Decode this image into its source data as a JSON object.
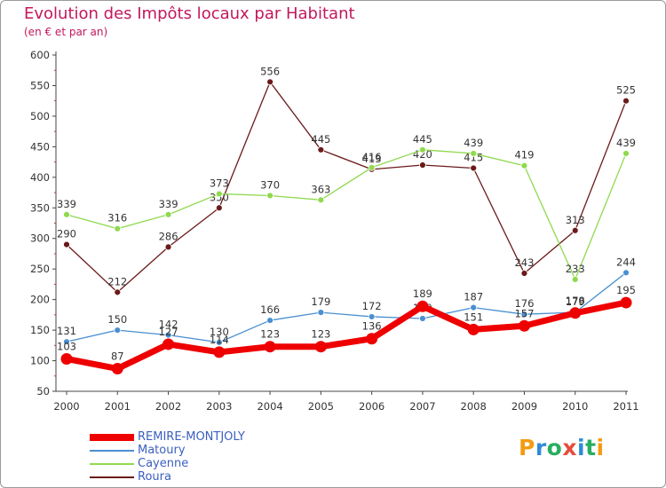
{
  "title": "Evolution des Impôts locaux par Habitant",
  "subtitle": "(en € et par an)",
  "logo": {
    "text": "Proxiti",
    "letters": [
      {
        "ch": "P",
        "color": "#f39c12"
      },
      {
        "ch": "r",
        "color": "#2e8bd6"
      },
      {
        "ch": "o",
        "color": "#27ae60"
      },
      {
        "ch": "x",
        "color": "#e74c3c"
      },
      {
        "ch": "i",
        "color": "#2e8bd6"
      },
      {
        "ch": "t",
        "color": "#27ae60"
      },
      {
        "ch": "i",
        "color": "#f39c12"
      }
    ]
  },
  "chart_data": {
    "type": "line",
    "title": "Evolution des Impôts locaux par Habitant",
    "subtitle": "(en € et par an)",
    "xlabel": "",
    "ylabel": "",
    "categories": [
      "2000",
      "2001",
      "2002",
      "2003",
      "2004",
      "2005",
      "2006",
      "2007",
      "2008",
      "2009",
      "2010",
      "2011"
    ],
    "ylim": [
      50,
      600
    ],
    "yticks": [
      50,
      100,
      150,
      200,
      250,
      300,
      350,
      400,
      450,
      500,
      550,
      600
    ],
    "grid": false,
    "legend_position": "bottom-left",
    "series": [
      {
        "name": "Roura",
        "color": "#6b1a1a",
        "values": [
          290,
          212,
          286,
          350,
          556,
          445,
          413,
          420,
          415,
          243,
          313,
          525
        ],
        "labels": [
          "290",
          "212",
          "286",
          "350",
          "556",
          "445",
          "413",
          "420",
          "415",
          "243",
          "313",
          "525"
        ]
      },
      {
        "name": "Cayenne",
        "color": "#8fd94e",
        "values": [
          339,
          316,
          339,
          373,
          370,
          363,
          416,
          445,
          439,
          419,
          233,
          439
        ],
        "labels": [
          "339",
          "316",
          "339",
          "373",
          "370",
          "363",
          "416",
          "445",
          "439",
          "419",
          "233",
          "439"
        ]
      },
      {
        "name": "Matoury",
        "color": "#4a8fd1",
        "values": [
          131,
          150,
          142,
          130,
          166,
          179,
          172,
          169,
          187,
          176,
          179,
          244
        ],
        "labels": [
          "131",
          "150",
          "142",
          "130",
          "166",
          "179",
          "172",
          "169",
          "187",
          "176",
          "179",
          "244"
        ]
      },
      {
        "name": "REMIRE-MONTJOLY",
        "color": "#ee0000",
        "values": [
          103,
          87,
          127,
          114,
          123,
          123,
          136,
          189,
          151,
          157,
          178,
          195
        ],
        "labels": [
          "103",
          "87",
          "127",
          "114",
          "123",
          "123",
          "136",
          "189",
          "151",
          "157",
          "178",
          "195"
        ]
      }
    ]
  },
  "legend": [
    {
      "name": "REMIRE-MONTJOLY",
      "color": "#ee0000"
    },
    {
      "name": "Matoury",
      "color": "#4a8fd1"
    },
    {
      "name": "Cayenne",
      "color": "#8fd94e"
    },
    {
      "name": "Roura",
      "color": "#6b1a1a"
    }
  ]
}
